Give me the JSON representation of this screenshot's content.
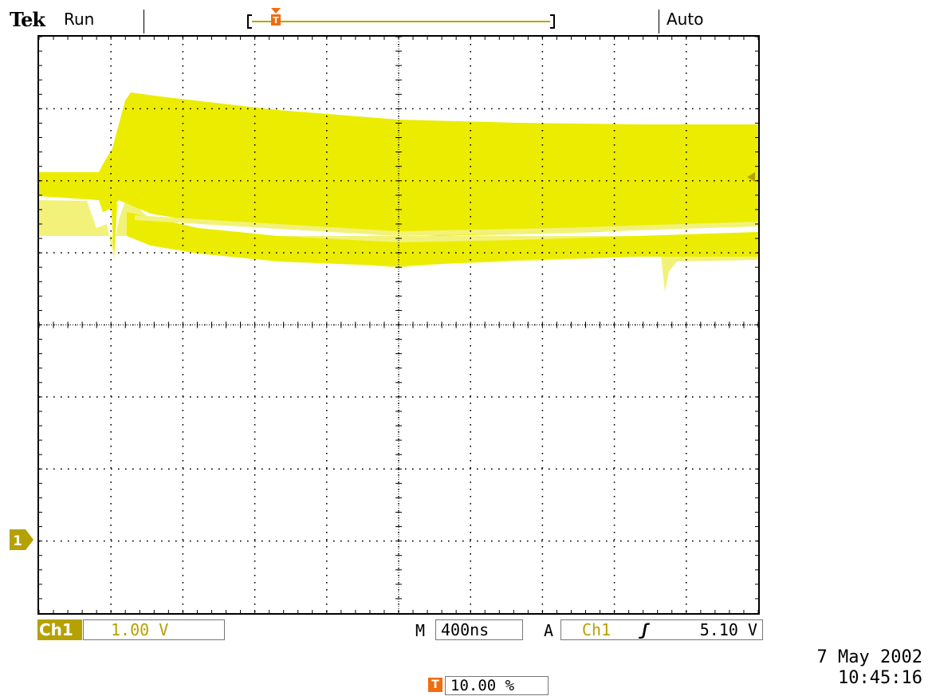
{
  "header": {
    "brand": "Tek",
    "run_state": "Run",
    "trigger_mode": "Auto"
  },
  "markers": {
    "trigger": "T",
    "channel": "1"
  },
  "readouts": {
    "channel_label": "Ch1",
    "channel_scale": "1.00 V",
    "main_label": "M",
    "timebase": "400ns",
    "trigger_label": "A",
    "trigger_source": "Ch1",
    "trigger_slope": "ʃ",
    "trigger_level": "5.10 V",
    "trigger_position": "10.00 %"
  },
  "timestamp": {
    "date": "7 May 2002",
    "time": "10:45:16"
  },
  "colors": {
    "trace": "#ecec00",
    "trace_light": "#f2f27a",
    "accent": "#b5a100",
    "trigger": "#f26b0f"
  }
}
